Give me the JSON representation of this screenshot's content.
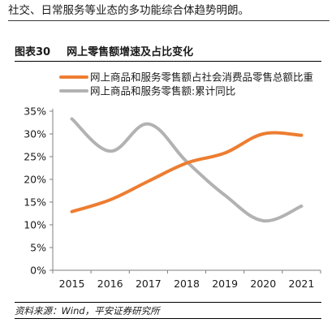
{
  "intro_text": "社交、日常服务等业态的多功能综合体趋势明朗。",
  "figure": {
    "number": "图表30",
    "title": "网上零售额增速及占比变化",
    "source": "资料来源：Wind，平安证券研究所"
  },
  "colors": {
    "share_series": "#ed7d31",
    "growth_series": "#b2b2b2",
    "axis": "#7f7f7f"
  },
  "chart_data": {
    "type": "line",
    "title": "",
    "xlabel": "",
    "ylabel": "",
    "categories": [
      "2015",
      "2016",
      "2017",
      "2018",
      "2019",
      "2020",
      "2021"
    ],
    "y_ticks": [
      "0%",
      "5%",
      "10%",
      "15%",
      "20%",
      "25%",
      "30%",
      "35%"
    ],
    "ylim": [
      0,
      35
    ],
    "unit": "%",
    "grid": false,
    "legend_position": "top",
    "series": [
      {
        "name": "网上商品和服务零售额占社会消费品零售总额比重",
        "color": "#ed7d31",
        "values": [
          12.9,
          15.5,
          19.6,
          23.6,
          25.8,
          30.0,
          29.7
        ]
      },
      {
        "name": "网上商品和服务零售额:累计同比",
        "color": "#b2b2b2",
        "values": [
          33.3,
          26.2,
          32.2,
          23.9,
          16.5,
          10.9,
          14.1
        ]
      }
    ]
  }
}
